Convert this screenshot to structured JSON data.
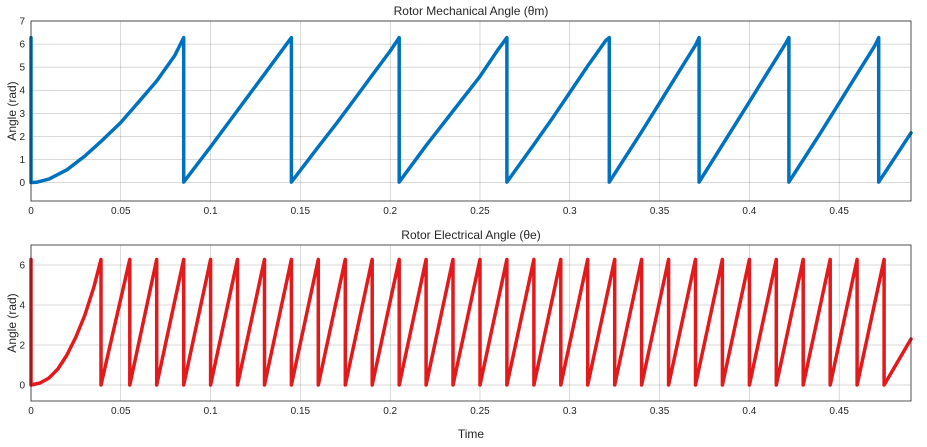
{
  "chart_data": [
    {
      "type": "line",
      "title": "Rotor Mechanical Angle (θm)",
      "xlabel": "",
      "ylabel": "Angle (rad)",
      "xlim": [
        0,
        0.49
      ],
      "ylim": [
        -0.8,
        7
      ],
      "xticks": [
        0,
        0.05,
        0.1,
        0.15,
        0.2,
        0.25,
        0.3,
        0.35,
        0.4,
        0.45
      ],
      "xtick_labels": [
        "0",
        "0.05",
        "0.1",
        "0.15",
        "0.2",
        "0.25",
        "0.3",
        "0.35",
        "0.4",
        "0.45"
      ],
      "yticks": [
        0,
        1,
        2,
        3,
        4,
        5,
        6,
        7
      ],
      "ytick_labels": [
        "0",
        "1",
        "2",
        "3",
        "4",
        "5",
        "6",
        "7"
      ],
      "grid": true,
      "series": [
        {
          "name": "θm",
          "color": "#0072BD",
          "x": [
            0,
            0,
            0.003,
            0.01,
            0.02,
            0.03,
            0.04,
            0.05,
            0.06,
            0.07,
            0.08,
            0.085,
            0.085,
            0.1,
            0.11,
            0.12,
            0.13,
            0.14,
            0.145,
            0.145,
            0.16,
            0.17,
            0.18,
            0.19,
            0.2,
            0.205,
            0.205,
            0.22,
            0.23,
            0.24,
            0.25,
            0.26,
            0.265,
            0.265,
            0.28,
            0.29,
            0.3,
            0.31,
            0.32,
            0.322,
            0.322,
            0.34,
            0.35,
            0.36,
            0.37,
            0.372,
            0.372,
            0.39,
            0.4,
            0.41,
            0.42,
            0.422,
            0.422,
            0.44,
            0.45,
            0.46,
            0.47,
            0.472,
            0.472,
            0.49
          ],
          "y": [
            6.28,
            0,
            0.01,
            0.15,
            0.55,
            1.15,
            1.85,
            2.6,
            3.5,
            4.4,
            5.5,
            6.28,
            0.02,
            1.55,
            2.6,
            3.65,
            4.7,
            5.75,
            6.28,
            0.02,
            1.55,
            2.55,
            3.6,
            4.65,
            5.7,
            6.28,
            0.02,
            1.6,
            2.6,
            3.6,
            4.6,
            5.75,
            6.28,
            0.02,
            1.65,
            2.75,
            3.9,
            5.05,
            6.15,
            6.28,
            0.02,
            2.2,
            3.45,
            4.7,
            5.95,
            6.28,
            0.02,
            2.25,
            3.5,
            4.75,
            6.0,
            6.28,
            0.02,
            2.2,
            3.45,
            4.7,
            5.95,
            6.28,
            0.02,
            2.15
          ]
        }
      ]
    },
    {
      "type": "line",
      "title": "Rotor Electrical Angle (θe)",
      "xlabel": "Time",
      "ylabel": "Angle (rad)",
      "xlim": [
        0,
        0.49
      ],
      "ylim": [
        -0.8,
        7
      ],
      "xticks": [
        0,
        0.05,
        0.1,
        0.15,
        0.2,
        0.25,
        0.3,
        0.35,
        0.4,
        0.45
      ],
      "xtick_labels": [
        "0",
        "0.05",
        "0.1",
        "0.15",
        "0.2",
        "0.25",
        "0.3",
        "0.35",
        "0.4",
        "0.45"
      ],
      "yticks": [
        0,
        2,
        4,
        6
      ],
      "ytick_labels": [
        "0",
        "2",
        "4",
        "6"
      ],
      "grid": true,
      "series": [
        {
          "name": "θe",
          "color": "#E31A1C",
          "sawtooth": {
            "start_curve_x": [
              0,
              0.005,
              0.01,
              0.015,
              0.02,
              0.025,
              0.03,
              0.035,
              0.039
            ],
            "start_curve_y": [
              0,
              0.1,
              0.35,
              0.8,
              1.5,
              2.4,
              3.5,
              4.9,
              6.28
            ],
            "wrap_times": [
              0.039,
              0.055,
              0.07,
              0.085,
              0.1,
              0.115,
              0.13,
              0.145,
              0.16,
              0.175,
              0.19,
              0.205,
              0.22,
              0.235,
              0.25,
              0.265,
              0.28,
              0.295,
              0.31,
              0.325,
              0.34,
              0.355,
              0.37,
              0.385,
              0.4,
              0.415,
              0.43,
              0.445,
              0.46,
              0.475
            ],
            "peak": 6.28,
            "end_x": 0.49,
            "end_y": 2.3
          }
        }
      ]
    }
  ]
}
